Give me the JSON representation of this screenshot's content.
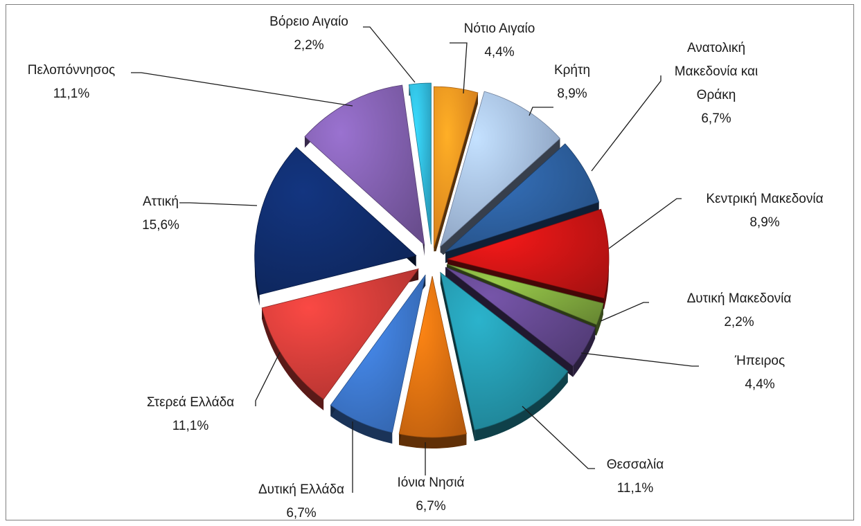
{
  "chart_data": {
    "type": "pie",
    "title": "",
    "style": "3d-exploded",
    "start_angle_deg": 0,
    "direction": "clockwise",
    "slices": [
      {
        "label": "Νότιο Αιγαίο",
        "value": 4.4,
        "display": "4,4%",
        "color": "#F28C1E"
      },
      {
        "label": "Κρήτη",
        "value": 8.9,
        "display": "8,9%",
        "color": "#9DB4D9"
      },
      {
        "label": "Ανατολική Μακεδονία και Θράκη",
        "lines": [
          "Ανατολική",
          "Μακεδονία και",
          "Θράκη"
        ],
        "value": 6.7,
        "display": "6,7%",
        "color": "#2A5A96"
      },
      {
        "label": "Κεντρική Μακεδονία",
        "value": 8.9,
        "display": "8,9%",
        "color": "#C41414"
      },
      {
        "label": "Δυτική Μακεδονία",
        "value": 2.2,
        "display": "2,2%",
        "color": "#7BA23C"
      },
      {
        "label": "Ήπειρος",
        "value": 4.4,
        "display": "4,4%",
        "color": "#5E4487"
      },
      {
        "label": "Θεσσαλία",
        "value": 11.1,
        "display": "11,1%",
        "color": "#228FA3"
      },
      {
        "label": "Ιόνια Νησιά",
        "value": 6.7,
        "display": "6,7%",
        "color": "#D86B10"
      },
      {
        "label": "Δυτική Ελλάδα",
        "value": 6.7,
        "display": "6,7%",
        "color": "#3A72C4"
      },
      {
        "label": "Στερεά Ελλάδα",
        "value": 11.1,
        "display": "11,1%",
        "color": "#C83A36"
      },
      {
        "label": "Αττική",
        "value": 15.6,
        "display": "15,6%",
        "color": "#0F2A66"
      },
      {
        "label": "Πελοπόννησος",
        "value": 11.1,
        "display": "11,1%",
        "color": "#7B5BA6"
      },
      {
        "label": "Βόρειο Αιγαίο",
        "value": 2.2,
        "display": "2,2%",
        "color": "#2EB0D4"
      }
    ]
  }
}
